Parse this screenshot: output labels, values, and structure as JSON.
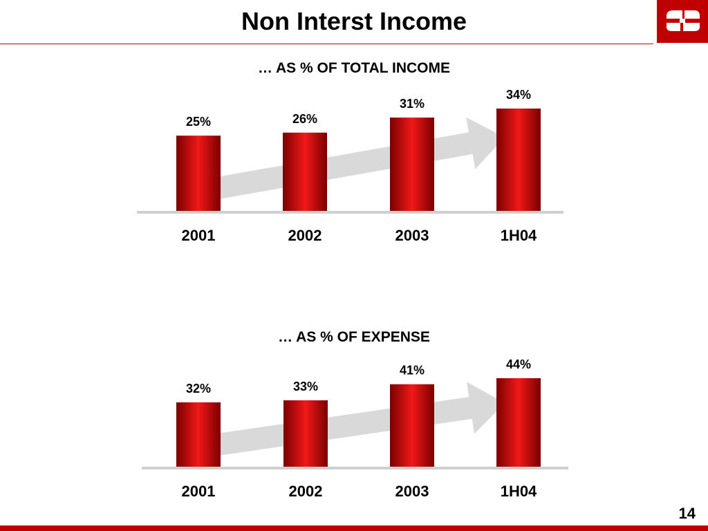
{
  "page": {
    "title": "Non Interst Income",
    "page_number": "14",
    "logo": "bank-logo-icon"
  },
  "colors": {
    "accent": "#c00000",
    "bar_dark": "#7a0000",
    "bar_light": "#f21818",
    "baseline": "#cfcfcf",
    "arrow": "#d9d9d9"
  },
  "chart_data": [
    {
      "type": "bar",
      "title": "… AS % OF TOTAL INCOME",
      "categories": [
        "2001",
        "2002",
        "2003",
        "1H04"
      ],
      "values": [
        25,
        26,
        31,
        34
      ],
      "data_labels": [
        "25%",
        "26%",
        "31%",
        "34%"
      ],
      "ylim": [
        0,
        34
      ],
      "trend_arrow": true,
      "grid": false
    },
    {
      "type": "bar",
      "title": "… AS % OF EXPENSE",
      "categories": [
        "2001",
        "2002",
        "2003",
        "1H04"
      ],
      "values": [
        32,
        33,
        41,
        44
      ],
      "data_labels": [
        "32%",
        "33%",
        "41%",
        "44%"
      ],
      "ylim": [
        0,
        44
      ],
      "trend_arrow": true,
      "grid": false
    }
  ]
}
